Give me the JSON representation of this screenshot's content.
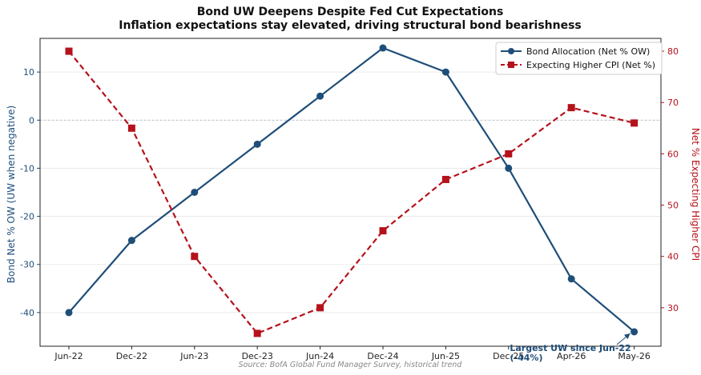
{
  "chart_data": {
    "type": "line",
    "title": "Bond UW Deepens Despite Fed Cut Expectations",
    "subtitle": "Inflation expectations stay elevated, driving structural bond bearishness",
    "categories": [
      "Jun-22",
      "Dec-22",
      "Jun-23",
      "Dec-23",
      "Jun-24",
      "Dec-24",
      "Jun-25",
      "Dec-25",
      "Apr-26",
      "May-26"
    ],
    "series": [
      {
        "name": "Bond Allocation (Net % OW)",
        "axis": "left",
        "color": "#1f4e79",
        "style": "solid",
        "marker": "circle",
        "values": [
          -40,
          -25,
          -15,
          -5,
          5,
          15,
          10,
          -10,
          -33,
          -44
        ]
      },
      {
        "name": "Expecting Higher CPI (Net %)",
        "axis": "right",
        "color": "#b5121b",
        "style": "dashed",
        "marker": "square",
        "values": [
          80,
          65,
          40,
          25,
          30,
          45,
          55,
          60,
          69,
          66
        ]
      }
    ],
    "ylabel": "Bond Net % OW (UW when negative)",
    "ylabel_right": "Net % Expecting Higher CPI",
    "ylim": [
      -47,
      17
    ],
    "ylim_right": [
      22.5,
      82.5
    ],
    "yticks": [
      -40,
      -30,
      -20,
      -10,
      0,
      10
    ],
    "yticks_right": [
      30,
      40,
      50,
      60,
      70,
      80
    ],
    "zero_line": true,
    "grid": "horizontal",
    "legend": "top-right",
    "annotation": {
      "text_line1": "Largest UW since Jun-22",
      "text_line2": "(-44%)",
      "target_category": "May-26",
      "target_value": -44
    },
    "source": "Source: BofA Global Fund Manager Survey, historical trend"
  }
}
